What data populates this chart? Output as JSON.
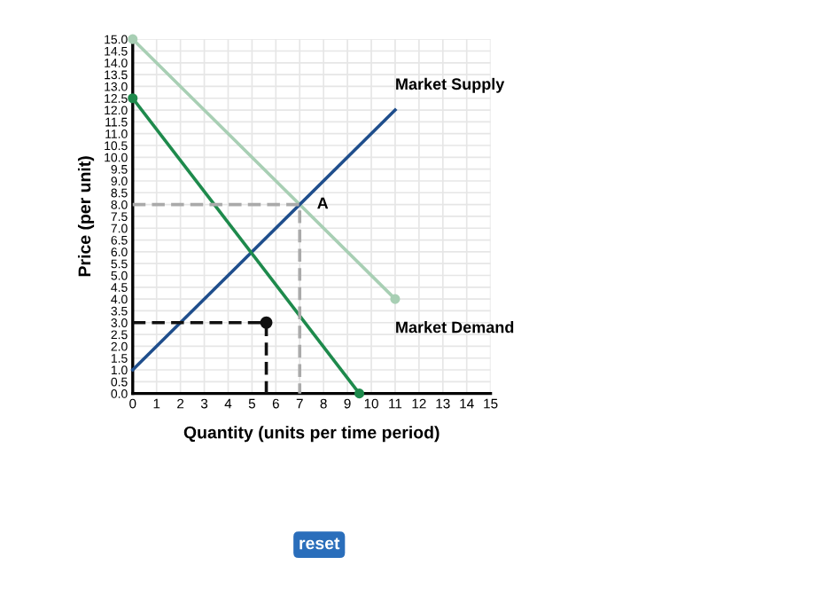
{
  "chart_data": {
    "type": "line",
    "xlabel": "Quantity (units per time period)",
    "ylabel": "Price (per unit)",
    "xlim": [
      0,
      15
    ],
    "ylim": [
      0,
      15
    ],
    "xticks": [
      0,
      1,
      2,
      3,
      4,
      5,
      6,
      7,
      8,
      9,
      10,
      11,
      12,
      13,
      14,
      15
    ],
    "yticks": [
      {
        "value": 0,
        "label": "0.0"
      },
      {
        "value": 0.5,
        "label": "0.5"
      },
      {
        "value": 1,
        "label": "1.0"
      },
      {
        "value": 1.5,
        "label": "1.5"
      },
      {
        "value": 2,
        "label": "2.0"
      },
      {
        "value": 2.5,
        "label": "2.5"
      },
      {
        "value": 3,
        "label": "3.0"
      },
      {
        "value": 3.5,
        "label": "3.5"
      },
      {
        "value": 4,
        "label": "4.0"
      },
      {
        "value": 4.5,
        "label": "4.5"
      },
      {
        "value": 5,
        "label": "5.0"
      },
      {
        "value": 5.5,
        "label": "5.5"
      },
      {
        "value": 6,
        "label": "6.0"
      },
      {
        "value": 6.5,
        "label": "6.5"
      },
      {
        "value": 7,
        "label": "7.0"
      },
      {
        "value": 7.5,
        "label": "7.5"
      },
      {
        "value": 8,
        "label": "8.0"
      },
      {
        "value": 8.5,
        "label": "8.5"
      },
      {
        "value": 9,
        "label": "9.0"
      },
      {
        "value": 9.5,
        "label": "9.5"
      },
      {
        "value": 10,
        "label": "10.0"
      },
      {
        "value": 10.5,
        "label": "10.5"
      },
      {
        "value": 11,
        "label": "11.0"
      },
      {
        "value": 11.5,
        "label": "11.5"
      },
      {
        "value": 12,
        "label": "12.0"
      },
      {
        "value": 12.5,
        "label": "12.5"
      },
      {
        "value": 13,
        "label": "13.0"
      },
      {
        "value": 13.5,
        "label": "13.5"
      },
      {
        "value": 14,
        "label": "14.0"
      },
      {
        "value": 14.5,
        "label": "14.5"
      },
      {
        "value": 15,
        "label": "15.0"
      }
    ],
    "grid": true,
    "legend": false,
    "series": [
      {
        "name": "Market Demand",
        "color": "#a8cfb4",
        "x": [
          0,
          11
        ],
        "values": [
          15,
          4
        ],
        "marker": "circle",
        "line_style": "solid"
      },
      {
        "name": "Market Supply",
        "color": "#1f4e8c",
        "x": [
          0,
          11
        ],
        "values": [
          1,
          12
        ],
        "marker": "none",
        "line_style": "solid"
      },
      {
        "color": "#1e8a4c",
        "x": [
          0,
          9.5
        ],
        "values": [
          12.5,
          0
        ],
        "marker": "circle",
        "line_style": "solid"
      },
      {
        "color": "#aaaaaa",
        "x": [
          0,
          7,
          7
        ],
        "values": [
          8,
          8,
          0
        ],
        "marker": "none",
        "line_style": "dashed"
      },
      {
        "color": "#111111",
        "x": [
          0,
          5.6,
          5.6
        ],
        "values": [
          3,
          3,
          0
        ],
        "marker": "none",
        "line_style": "dashed"
      },
      {
        "type": "scatter",
        "color": "#111111",
        "x": [
          5.6
        ],
        "values": [
          3
        ],
        "marker": "circle"
      }
    ],
    "annotations": [
      {
        "text": "A",
        "x": 7,
        "y": 8
      },
      "reset"
    ]
  }
}
